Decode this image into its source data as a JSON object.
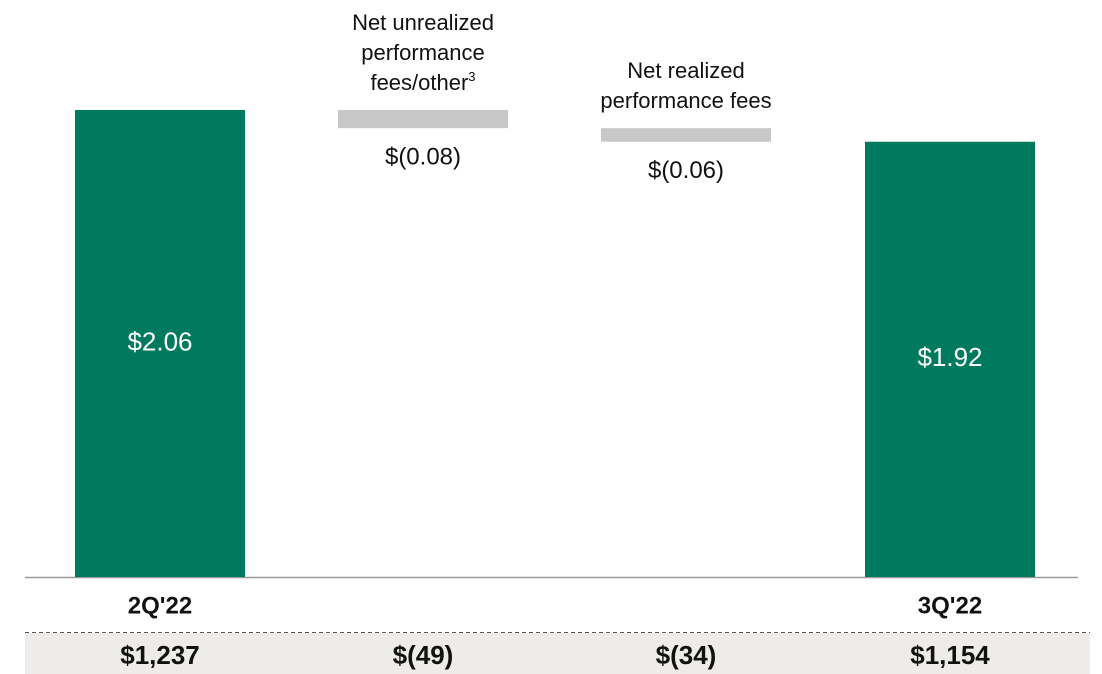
{
  "chart_data": {
    "type": "waterfall",
    "categories": [
      "2Q'22",
      "Net unrealized performance fees/other",
      "Net realized performance fees",
      "3Q'22"
    ],
    "category_footnotes": [
      null,
      "3",
      null,
      null
    ],
    "values": [
      2.06,
      -0.08,
      -0.06,
      1.92
    ],
    "value_labels": [
      "$2.06",
      "$(0.08)",
      "$(0.06)",
      "$1.92"
    ],
    "total_color": "#007a5e",
    "delta_color": "#c8c8c8",
    "footer_values": [
      "$1,237",
      "$(49)",
      "$(34)",
      "$1,154"
    ]
  }
}
